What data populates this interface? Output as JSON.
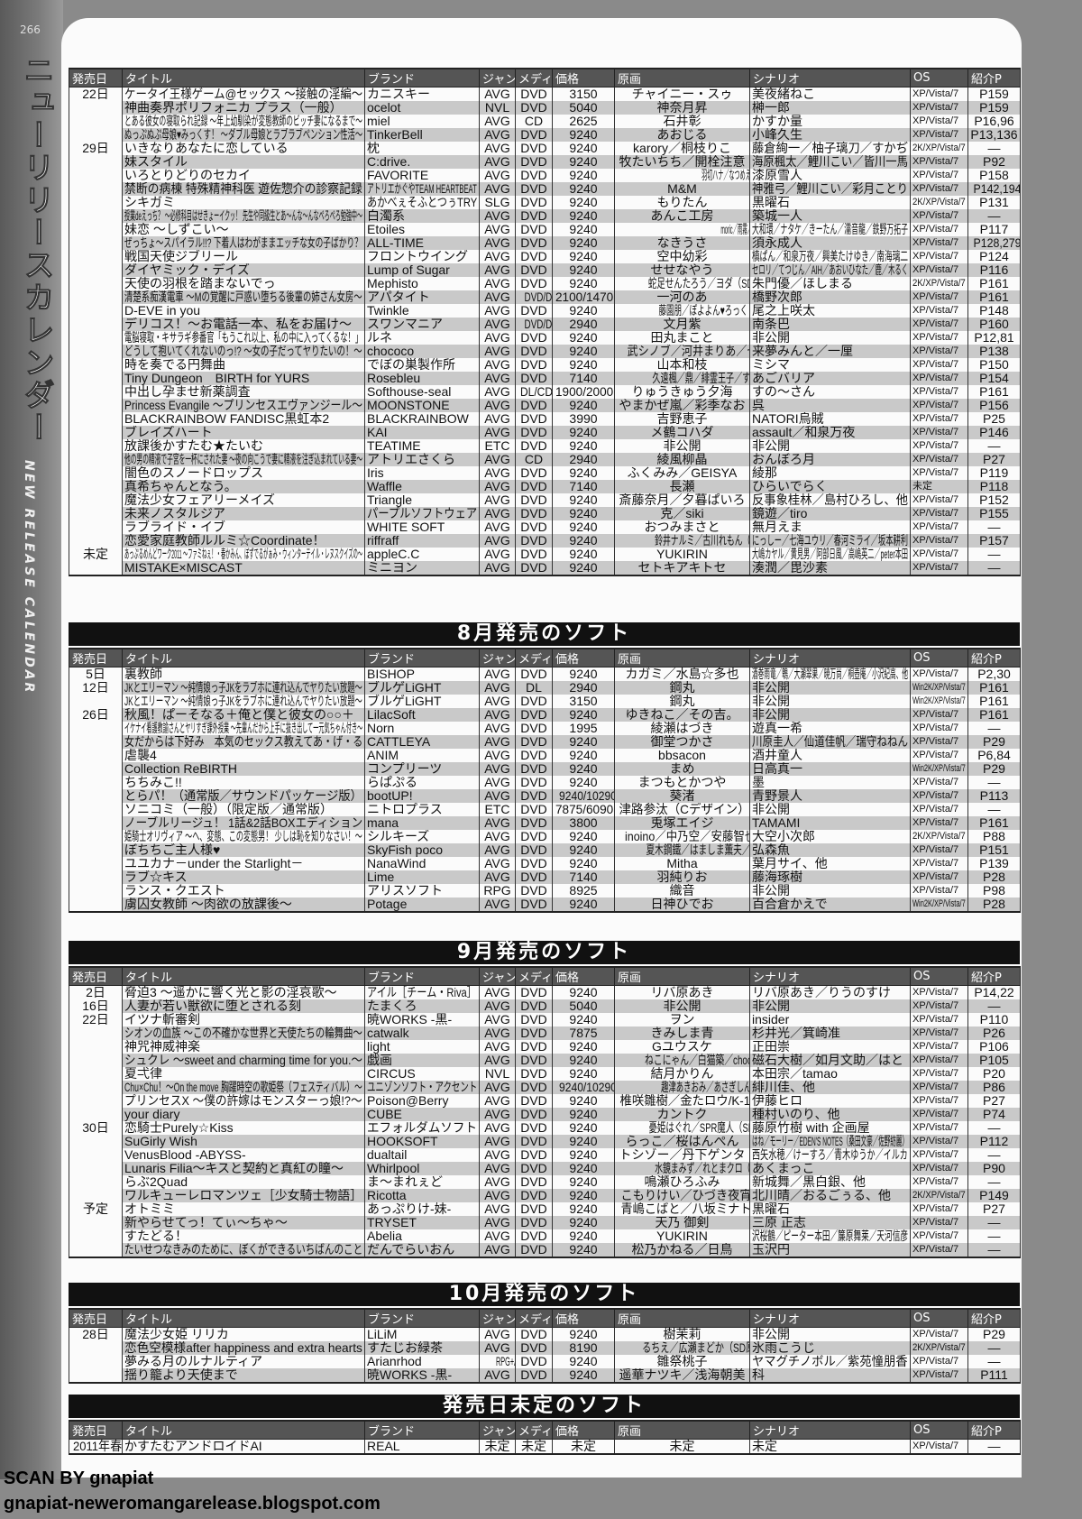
{
  "page_number": "266",
  "side_title_jp": "ニューリリースカレンダー",
  "side_title_en": "NEW RELEASE CALENDAR",
  "columns": [
    "発売日",
    "タイトル",
    "ブランド",
    "ジャンル",
    "メディア",
    "価格",
    "原画",
    "シナリオ",
    "OS",
    "紹介P"
  ],
  "sections": [
    {
      "heading": "",
      "rows": [
        [
          "22日",
          "ケータイ王様ゲーム@セックス ～接触の淫編～",
          "カニスキー",
          "AVG",
          "DVD",
          "3150",
          "チャイニー・スゥ",
          "美夜緒ねこ",
          "XP/Vista/7",
          "P159"
        ],
        [
          "",
          "神曲奏界ポリフォニカ プラス（一般）",
          "ocelot",
          "NVL",
          "DVD",
          "5040",
          "神奈月昇",
          "榊一郎",
          "XP/Vista/7",
          "P159"
        ],
        [
          "",
          "とある彼女の寝取られ記録 ～年上幼馴染が変態教師のビッチ妻になるまで～",
          "miel",
          "AVG",
          "CD",
          "2625",
          "石井彰",
          "かすか量",
          "XP/Vista/7",
          "P16,96"
        ],
        [
          "",
          "ぬっぷぬぷ母娘♥みっくす！ ～ダブル母娘とラブラブペンション性活～",
          "TinkerBell",
          "AVG",
          "DVD",
          "9240",
          "あおじる",
          "小峰久生",
          "XP/Vista/7",
          "P13,136"
        ],
        [
          "29日",
          "いきなりあなたに恋している",
          "枕",
          "AVG",
          "DVD",
          "9240",
          "karory／桐枝りこ",
          "藤倉絢一／柚子璃刀／すかぢ",
          "2K/XP/Vista/7",
          "—"
        ],
        [
          "",
          "妹スタイル",
          "C:drive.",
          "AVG",
          "DVD",
          "9240",
          "牧たいちち／開栓注意",
          "海原楓太／鯉川こい／皆川一馬",
          "XP/Vista/7",
          "P92"
        ],
        [
          "",
          "いろとりどりのセカイ",
          "FAVORITE",
          "AVG",
          "DVD",
          "9240",
          "羽切ハナ／なつめえり／GT／CHANXCO（SD原画）",
          "漆原雪人",
          "XP/Vista/7",
          "P158"
        ],
        [
          "",
          "禁断の病棟 特殊精神科医 遊佐惣介の診察記録",
          "アトリエかぐやTEAM HEARTBEAT",
          "AVG",
          "DVD",
          "9240",
          "M&M",
          "神雅弓／鯉川こい／彩月ことり",
          "XP/Vista/7",
          "P142,194"
        ],
        [
          "",
          "シキガミ",
          "あかべぇそふとつぅTRY",
          "SLG",
          "DVD",
          "9240",
          "もりたん",
          "黒曜石",
          "2K/XP/Vista/7",
          "P131"
        ],
        [
          "",
          "授業deえっち？ ～必修科目はせきょーイクッ！ 先生や同級生とあ～んな～んなペろペろ勉強中～",
          "白濁系",
          "AVG",
          "DVD",
          "9240",
          "あんこ工房",
          "築城一人",
          "XP/Vista/7",
          "—"
        ],
        [
          "",
          "妹恋 ～しずこい～",
          "Etoiles",
          "AVG",
          "DVD",
          "9240",
          "moric／雨霧／たかとうすずのすけ／ヤナギユウ（SD原画）",
          "大和環／ナタケ／きーたん／濡音龍／鉄野万拓子",
          "XP/Vista/7",
          "P117"
        ],
        [
          "",
          "ぜっちょ～スパイラル!!? 下着人はわがままエッチな女の子ばかり？",
          "ALL-TIME",
          "AVG",
          "DVD",
          "9240",
          "なきうさ",
          "須永成人",
          "XP/Vista/7",
          "P128,279"
        ],
        [
          "",
          "戦国天使ジブリール",
          "フロントウイング",
          "AVG",
          "DVD",
          "9240",
          "空中幼彩",
          "槙ぱん／和泉万夜／興美たけゆき／南海璃二",
          "XP/Vista/7",
          "P124"
        ],
        [
          "",
          "ダイヤミック・デイズ",
          "Lump of Sugar",
          "AVG",
          "DVD",
          "9240",
          "せせなやう",
          "セロリ／てつじん／AIH／あおいひなた／鹿／木るく",
          "XP/Vista/7",
          "P116"
        ],
        [
          "",
          "天使の羽根を踏まないでっ",
          "Mephisto",
          "AVG",
          "DVD",
          "9240",
          "蛇足せんたろう／ヨダ（SD原画）",
          "朱門優／ほしまる",
          "2K/XP/Vista/7",
          "P161"
        ],
        [
          "",
          "清楚系痴漢電車 ～Mの覚醒に戸惑い堕ちる後輩の姉さん女房～",
          "アパタイト",
          "AVG",
          "DVD/DL",
          "2100/1470",
          "一河のあ",
          "橋野次郎",
          "XP/Vista/7",
          "P161"
        ],
        [
          "",
          "D-EVE in you",
          "Twinkle",
          "AVG",
          "DVD",
          "9240",
          "藤園朋／ぽよよん♥ろっく（SD原画）",
          "尾之上咲太",
          "XP/Vista/7",
          "P148"
        ],
        [
          "",
          "デリコス！～お電話一本、私をお届け～",
          "スワンマニア",
          "AVG",
          "DVD/DL",
          "2940",
          "文月紫",
          "南条巴",
          "XP/Vista/7",
          "P160"
        ],
        [
          "",
          "電脳寝取・キサラギ参番官「もうこれ以上、私の中に入ってくるな！」",
          "ルネ",
          "AVG",
          "DVD",
          "9240",
          "田丸まこと",
          "非公開",
          "XP/Vista/7",
          "P12,81"
        ],
        [
          "",
          "どうして抱いてくれないのっ!? ～女の子だってヤりたいの！～",
          "chococo",
          "AVG",
          "DVD",
          "9240",
          "武シノブ／河井まりあ／七",
          "来夢みんと／一厘",
          "XP/Vista/7",
          "P138"
        ],
        [
          "",
          "時を奏でる円舞曲",
          "でぼの巣製作所",
          "AVG",
          "DVD",
          "9240",
          "山本和枝",
          "ミシマ",
          "XP/Vista/7",
          "P150"
        ],
        [
          "",
          "Tiny Dungeon　BIRTH for YURS",
          "Rosebleu",
          "AVG",
          "DVD",
          "7140",
          "久遠楓／鼎／緋霊王子／すずめかく",
          "あごバリア",
          "XP/Vista/7",
          "P154"
        ],
        [
          "",
          "中出し孕ませ新薬調査",
          "Softhouse-seal",
          "AVG",
          "DL/CD",
          "1900/2000",
          "りゅうきゅう夕海",
          "すの～さん",
          "XP/Vista/7",
          "P161"
        ],
        [
          "",
          "Princess Evangile ～プリンセスエヴァンジール～",
          "MOONSTONE",
          "AVG",
          "DVD",
          "9240",
          "やまかぜ嵐／彩季なお",
          "呉",
          "XP/Vista/7",
          "P156"
        ],
        [
          "",
          "BLACKRAINBOW FANDISC黒虹本2",
          "BLACKRAINBOW",
          "AVG",
          "DVD",
          "3990",
          "吉野恵子",
          "NATORI烏賊",
          "XP/Vista/7",
          "P25"
        ],
        [
          "",
          "ブレイズハート",
          "KAI",
          "AVG",
          "DVD",
          "9240",
          "メ鶴コハダ",
          "assault／和泉万夜",
          "XP/Vista/7",
          "P146"
        ],
        [
          "",
          "放課後かすたむ★たいむ",
          "TEATIME",
          "ETC",
          "DVD",
          "9240",
          "非公開",
          "非公開",
          "XP/Vista/7",
          "—"
        ],
        [
          "",
          "他の男の精液で子宮を一杯にされた妻 ～夜の向こうで妻に精液を注ぎ込まれている妻～",
          "アトリエさくら",
          "AVG",
          "CD",
          "2940",
          "綾風柳晶",
          "おんぼろ月",
          "XP/Vista/7",
          "P27"
        ],
        [
          "",
          "闇色のスノードロップス",
          "Iris",
          "AVG",
          "DVD",
          "9240",
          "ふくみみ／GEISYA",
          "綾那",
          "XP/Vista/7",
          "P119"
        ],
        [
          "",
          "真希ちゃんとなう。",
          "Waffle",
          "AVG",
          "DVD",
          "7140",
          "長瀬",
          "ひらいでらく",
          "未定",
          "P118"
        ],
        [
          "",
          "魔法少女フェアリーメイズ",
          "Triangle",
          "AVG",
          "DVD",
          "9240",
          "斎藤奈月／夕暮ぱいろ",
          "反事象桂林／島村ひろし、他",
          "XP/Vista/7",
          "P152"
        ],
        [
          "",
          "未来ノスタルジア",
          "パープルソフトウェア",
          "AVG",
          "DVD",
          "9240",
          "克／siki",
          "鏡遊／tiro",
          "XP/Vista/7",
          "P155"
        ],
        [
          "",
          "ラブライド・イブ",
          "WHITE SOFT",
          "AVG",
          "DVD",
          "9240",
          "おつみまさと",
          "無月えま",
          "XP/Vista/7",
          "—"
        ],
        [
          "",
          "恋愛家庭教師ルルミ☆Coordinate！",
          "riffraff",
          "AVG",
          "DVD",
          "9240",
          "鈴井ナルミ／古川れもん（SD原画）",
          "にっしー／七海ユウリ／春河ミライ／坂本耕利",
          "XP/Vista/7",
          "P157"
        ],
        [
          "未定",
          "あっぷるめんどワーク2011 ～ファミねぇ！・春かみん、ぼずでるがぁみ・ウィンターテイル・レヌスクイズの～",
          "appleC.C",
          "AVG",
          "DVD",
          "9240",
          "YUKIRIN",
          "大嶋カヤル／黄見男／阿部日風／高嶋英二／peter本田",
          "XP/Vista/7",
          "—"
        ],
        [
          "",
          "MISTAKE×MISCAST",
          "ミニヨン",
          "AVG",
          "DVD",
          "9240",
          "セトキアキトセ",
          "湊潤／毘沙素",
          "XP/Vista/7",
          "—"
        ]
      ]
    },
    {
      "heading": "8月発売のソフト",
      "rows": [
        [
          "5日",
          "裏教師",
          "BISHOP",
          "AVG",
          "DVD",
          "9240",
          "カガミ／水島☆多也",
          "酒巻雨竜／鵯／大瀬翠果／暁万尚／桐壺庵／小沢紀高、他",
          "XP/Vista/7",
          "P2,30"
        ],
        [
          "12日",
          "JKとエリーマン ～純情娘っ子JKをラブホに連れ込んでヤりたい放題～",
          "ブルゲLiGHT",
          "AVG",
          "DL",
          "2940",
          "鋼丸",
          "非公開",
          "Win2K/XP/Vista/7",
          "P161"
        ],
        [
          "",
          "JKとエリーマン ～純情娘っ子JKをラブホに連れ込んでヤりたい放題～",
          "ブルゲLiGHT",
          "AVG",
          "DVD",
          "3150",
          "鋼丸",
          "非公開",
          "Win2K/XP/Vista/7",
          "P161"
        ],
        [
          "26日",
          "秋風！ぱーそなる＋俺と僕と彼女の○○＋",
          "LilacSoft",
          "AVG",
          "DVD",
          "9240",
          "ゆきねこ／その吉。",
          "非公開",
          "XP/Vista/7",
          "P161"
        ],
        [
          "",
          "イケナイ看護教諭さんとヤリすぎ課外授業 ～先輩んだから上手に抜き出して一元気ちゃん付き～",
          "Norn",
          "AVG",
          "DVD",
          "1995",
          "綾瀬はづき",
          "遊真一希",
          "XP/Vista/7",
          "—"
        ],
        [
          "",
          "女だからは下好み　本気のセックス教えてあ・げ・る",
          "CATTLEYA",
          "AVG",
          "DVD",
          "9240",
          "御堂つかさ",
          "川原圭人／仙道佳帆／瑞守ねねん",
          "XP/Vista/7",
          "P29"
        ],
        [
          "",
          "虐襲4",
          "ANIM",
          "AVG",
          "DVD",
          "9240",
          "bbsacon",
          "酒井童人",
          "XP/Vista/7",
          "P6,84"
        ],
        [
          "",
          "Collection ReBIRTH",
          "コンプリーツ",
          "AVG",
          "DVD",
          "9240",
          "まめ",
          "日高真一",
          "Win2K/XP/Vista/7",
          "P29"
        ],
        [
          "",
          "ちちみこ!!",
          "らぱぷる",
          "AVG",
          "DVD",
          "9240",
          "まつもとかつや",
          "墨",
          "XP/Vista/7",
          "—"
        ],
        [
          "",
          "とらパ！（通常版／サウンドパッケージ版）",
          "bootUP!",
          "AVG",
          "DVD",
          "9240/10290",
          "葵渚",
          "青野景人",
          "XP/Vista/7",
          "P113"
        ],
        [
          "",
          "ソニコミ（一般）（限定版／通常版）",
          "ニトロプラス",
          "ETC",
          "DVD",
          "7875/6090",
          "津路参汰（Cデザイン）",
          "非公開",
          "XP/Vista/7",
          "—"
        ],
        [
          "",
          "ノーブルリージュ！ 1話&2話BOXエディション",
          "mana",
          "AVG",
          "DVD",
          "3800",
          "兎塚エイジ",
          "TAMAMI",
          "XP/Vista/7",
          "P161"
        ],
        [
          "",
          "姫騎士オリヴィア ～ヘ、変態、この変態男！ 少しは恥を知りなさい！～",
          "シルキーズ",
          "AVG",
          "DVD",
          "9240",
          "inoino／中乃空／安藤智也",
          "大空小次郎",
          "2K/XP/Vista/7",
          "P88"
        ],
        [
          "",
          "ぼちちご主人様♥",
          "SkyFish poco",
          "AVG",
          "DVD",
          "9240",
          "夏木鋼鐵／はましま薫夫／中乃空",
          "弘森魚",
          "XP/Vista/7",
          "P151"
        ],
        [
          "",
          "ユユカナ－under the Starlight－",
          "NanaWind",
          "AVG",
          "DVD",
          "9240",
          "Mitha",
          "葉月サイ、他",
          "XP/Vista/7",
          "P139"
        ],
        [
          "",
          "ラブ☆キス",
          "Lime",
          "AVG",
          "DVD",
          "7140",
          "羽純りお",
          "藤海琢樹",
          "XP/Vista/7",
          "P28"
        ],
        [
          "",
          "ランス・クエスト",
          "アリスソフト",
          "RPG",
          "DVD",
          "8925",
          "織音",
          "非公開",
          "XP/Vista/7",
          "P98"
        ],
        [
          "",
          "虜囚女教師 ～肉欲の放課後～",
          "Potage",
          "AVG",
          "DVD",
          "9240",
          "日神ひでお",
          "百合倉かえで",
          "Win2K/XP/Vista/7",
          "P28"
        ]
      ]
    },
    {
      "heading": "9月発売のソフト",
      "rows": [
        [
          "2日",
          "脅迫3 ～遥かに響く光と影の淫哀歌～",
          "アイル［チーム・Riva］",
          "AVG",
          "DVD",
          "9240",
          "リバ原あき",
          "リバ原あき／りうのすけ",
          "XP/Vista/7",
          "P14,22"
        ],
        [
          "16日",
          "人妻が若い獣欲に堕とされる刻",
          "たまくろ",
          "AVG",
          "DVD",
          "5040",
          "非公開",
          "非公開",
          "XP/Vista/7",
          "—"
        ],
        [
          "22日",
          "イツナ斬審剣",
          "暁WORKS -黒-",
          "AVG",
          "DVD",
          "9240",
          "ヲン",
          "insider",
          "XP/Vista/7",
          "P110"
        ],
        [
          "",
          "シオンの血族 ～この不確かな世界と天使たちの輪舞曲～",
          "catwalk",
          "AVG",
          "DVD",
          "7875",
          "きみしま青",
          "杉井光／箕崎准",
          "XP/Vista/7",
          "P26"
        ],
        [
          "",
          "神咒神威神楽",
          "light",
          "AVG",
          "DVD",
          "9240",
          "Gユウスケ",
          "正田崇",
          "XP/Vista/7",
          "P106"
        ],
        [
          "",
          "シュクレ ～sweet and charming time for you.～",
          "戯画",
          "AVG",
          "DVD",
          "9240",
          "ねこにゃん／白猫築／choco chip",
          "磁石大樹／如月文助／はと",
          "XP/Vista/7",
          "P105"
        ],
        [
          "",
          "夏弌律",
          "CIRCUS",
          "NVL",
          "DVD",
          "9240",
          "結月かりん",
          "本田宗／tamao",
          "XP/Vista/7",
          "P20"
        ],
        [
          "",
          "Chu×Chu！～On the move 胸躍時空の歌姫祭（フェスティバル）～",
          "ユニゾンソフト・アクセント",
          "AVG",
          "DVD",
          "9240/10290",
          "趣津あきおみ／あさぎしん（SD原画）",
          "緋川佳、他",
          "XP/Vista/7",
          "P86"
        ],
        [
          "",
          "プリンセスX ～僕の許嫁はモンスターっ娘!?～",
          "Poison@Berry",
          "AVG",
          "DVD",
          "9240",
          "椎咲雛樹／金たロウ/K-1",
          "伊藤ヒロ",
          "XP/Vista/7",
          "P27"
        ],
        [
          "",
          "your diary",
          "CUBE",
          "AVG",
          "DVD",
          "9240",
          "カントク",
          "種村いのり、他",
          "XP/Vista/7",
          "P74"
        ],
        [
          "30日",
          "恋騎士Purely☆Kiss",
          "エフォルダムソフト",
          "AVG",
          "DVD",
          "9240",
          "憂姫はぐれ／SPR魔人（SD原画）",
          "藤原竹樹 with 企画屋",
          "XP/Vista/7",
          "—"
        ],
        [
          "",
          "SuGirly Wish",
          "HOOKSOFT",
          "AVG",
          "DVD",
          "9240",
          "らっこ／桜はんぺん",
          "はね／モーリー／EDEN'S NOTES（桑田文豪／佐野紡麗）",
          "XP/Vista/7",
          "P112"
        ],
        [
          "",
          "VenusBlood -ABYSS-",
          "dualtail",
          "AVG",
          "DVD",
          "9240",
          "トシゾー／丹下ゲンタ",
          "西矢水穂／けーすろ／青木ゆうか／イルカ",
          "XP/Vista/7",
          "—"
        ],
        [
          "",
          "Lunaris Filia～キスと契約と真紅の瞳～",
          "Whirlpool",
          "AVG",
          "DVD",
          "9240",
          "水鏡まみず／れとまクロ（SD原画）",
          "あくまっこ",
          "XP/Vista/7",
          "P90"
        ],
        [
          "",
          "らぶ2Quad",
          "ま～まれぇど",
          "AVG",
          "DVD",
          "9240",
          "鳴瀬ひろふみ",
          "新城舞／黒白銀、他",
          "XP/Vista/7",
          "—"
        ],
        [
          "",
          "ワルキューレロマンツェ［少女騎士物語］",
          "Ricotta",
          "AVG",
          "DVD",
          "9240",
          "こもりけい／ひづき夜宵",
          "北川晴／おるごぅる、他",
          "2K/XP/Vista/7",
          "P149"
        ],
        [
          "予定",
          "オトミミ",
          "あっぷりけ-妹-",
          "AVG",
          "DVD",
          "9240",
          "青嶋こばと／八坂ミナト",
          "黒曜石",
          "XP/Vista/7",
          "P27"
        ],
        [
          "",
          "新やらせてっ！てぃ～ちゃ～",
          "TRYSET",
          "AVG",
          "DVD",
          "9240",
          "天乃 御剣",
          "三原 正志",
          "XP/Vista/7",
          "—"
        ],
        [
          "",
          "すたどる！",
          "Abelia",
          "AVG",
          "DVD",
          "9240",
          "YUKIRIN",
          "沢桜鶴／ピーター本田／簾原舞莱／天河信彦",
          "XP/Vista/7",
          "—"
        ],
        [
          "",
          "たいせつなきみのために、ぼくができるいちばんのこと",
          "だんでらいおん",
          "AVG",
          "DVD",
          "9240",
          "松乃かねる／日鳥",
          "玉沢円",
          "XP/Vista/7",
          "—"
        ]
      ]
    },
    {
      "heading": "10月発売のソフト",
      "rows": [
        [
          "28日",
          "魔法少女姫 リリカ",
          "LiLiM",
          "AVG",
          "DVD",
          "9240",
          "樹茉莉",
          "非公開",
          "XP/Vista/7",
          "P29"
        ],
        [
          "",
          "恋色空模様after happiness and extra hearts",
          "すたじお緑茶",
          "AVG",
          "DVD",
          "8190",
          "るちえ／広瀬まどか（SD原画）",
          "氷雨こうじ",
          "2K/XP/Vista/7",
          "—"
        ],
        [
          "",
          "夢みる月のルナルティア",
          "Arianrhod",
          "RPG+AVG",
          "DVD",
          "9240",
          "雛祭桃子",
          "ヤマグチノボル／紫苑憧朋香",
          "XP/Vista/7",
          "—"
        ],
        [
          "",
          "揺り籠より天使まで",
          "暁WORKS -黒-",
          "AVG",
          "DVD",
          "9240",
          "遥華ナツキ／浅海朝美",
          "科",
          "XP/Vista/7",
          "P111"
        ]
      ]
    },
    {
      "heading": "発売日未定のソフト",
      "rows": [
        [
          "2011年春",
          "かすたむアンドロイドAI",
          "REAL",
          "未定",
          "未定",
          "未定",
          "未定",
          "未定",
          "XP/Vista/7",
          "—"
        ]
      ]
    }
  ],
  "footer": {
    "scan_credit": "SCAN BY gnapiat",
    "url": "gnapiat-neweromangarelease.blogspot.com"
  }
}
